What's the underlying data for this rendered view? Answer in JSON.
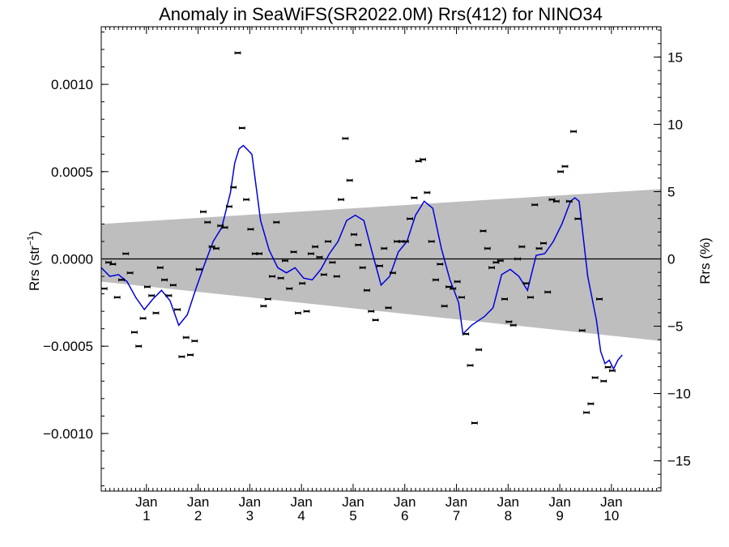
{
  "chart_data": {
    "type": "scatter",
    "title": "Anomaly in SeaWiFS(SR2022.0M) Rrs(412) for NINO34",
    "ylabel_left": {
      "base": "Rrs (str",
      "sup": "−1",
      "close": ")"
    },
    "ylabel_right": "Rrs (%)",
    "x_unit": "months since start",
    "xlim": [
      0,
      130
    ],
    "ylim_left": [
      -0.00133,
      0.00133
    ],
    "ylim_right": [
      -17.25,
      17.25
    ],
    "y_ticks_left": [
      {
        "v": 0.001,
        "label": "0.0010"
      },
      {
        "v": 0.0005,
        "label": "0.0005"
      },
      {
        "v": 0.0,
        "label": "0.0000"
      },
      {
        "v": -0.0005,
        "label": "−0.0005"
      },
      {
        "v": -0.001,
        "label": "−0.0010"
      }
    ],
    "y_ticks_right": [
      {
        "v": 15,
        "label": "15"
      },
      {
        "v": 10,
        "label": "10"
      },
      {
        "v": 5,
        "label": "5"
      },
      {
        "v": 0,
        "label": "0"
      },
      {
        "v": -5,
        "label": "−5"
      },
      {
        "v": -10,
        "label": "−10"
      },
      {
        "v": -15,
        "label": "−15"
      }
    ],
    "x_ticks": [
      {
        "x": 10.5,
        "month": "Jan",
        "year": "1"
      },
      {
        "x": 22.5,
        "month": "Jan",
        "year": "2"
      },
      {
        "x": 34.5,
        "month": "Jan",
        "year": "3"
      },
      {
        "x": 46.5,
        "month": "Jan",
        "year": "4"
      },
      {
        "x": 58.5,
        "month": "Jan",
        "year": "5"
      },
      {
        "x": 70.5,
        "month": "Jan",
        "year": "6"
      },
      {
        "x": 82.5,
        "month": "Jan",
        "year": "7"
      },
      {
        "x": 94.5,
        "month": "Jan",
        "year": "8"
      },
      {
        "x": 106.5,
        "month": "Jan",
        "year": "9"
      },
      {
        "x": 118.5,
        "month": "Jan",
        "year": "10"
      }
    ],
    "band": {
      "upper": [
        [
          0,
          0.0002
        ],
        [
          130,
          0.0004
        ]
      ],
      "lower": [
        [
          0,
          -0.00013
        ],
        [
          130,
          -0.00047
        ]
      ],
      "color": "#bebebe"
    },
    "zero_line": true,
    "colors": {
      "points": "#000000",
      "smooth": "#0000dd",
      "band": "#bebebe"
    },
    "points": [
      [
        0.7,
        -0.00017
      ],
      [
        1.7,
        -2e-05
      ],
      [
        2.7,
        -3e-05
      ],
      [
        3.7,
        -0.00022
      ],
      [
        4.7,
        -0.00012
      ],
      [
        5.7,
        3e-05
      ],
      [
        6.7,
        -8e-05
      ],
      [
        7.7,
        -0.00042
      ],
      [
        8.7,
        -0.0005
      ],
      [
        9.7,
        -0.00034
      ],
      [
        10.7,
        -0.00016
      ],
      [
        11.7,
        -0.00021
      ],
      [
        12.7,
        -0.00031
      ],
      [
        13.7,
        -5e-05
      ],
      [
        14.7,
        -0.00012
      ],
      [
        15.7,
        -0.00021
      ],
      [
        16.7,
        -0.00015
      ],
      [
        17.7,
        -0.00029
      ],
      [
        18.7,
        -0.00056
      ],
      [
        19.7,
        -0.00045
      ],
      [
        20.7,
        -0.00055
      ],
      [
        21.7,
        -0.00047
      ],
      [
        22.7,
        -6e-05
      ],
      [
        23.7,
        0.00027
      ],
      [
        24.7,
        0.00021
      ],
      [
        25.7,
        7e-05
      ],
      [
        26.7,
        6e-05
      ],
      [
        27.7,
        0.00019
      ],
      [
        28.7,
        0.00018
      ],
      [
        29.7,
        0.0003
      ],
      [
        30.7,
        0.00041
      ],
      [
        31.7,
        0.00118
      ],
      [
        32.7,
        0.00075
      ],
      [
        33.7,
        0.00034
      ],
      [
        34.7,
        0.00017
      ],
      [
        35.7,
        3e-05
      ],
      [
        36.7,
        3e-05
      ],
      [
        37.7,
        -0.00027
      ],
      [
        38.7,
        -0.00023
      ],
      [
        39.7,
        -0.0001
      ],
      [
        40.7,
        0.00021
      ],
      [
        41.7,
        -0.00011
      ],
      [
        42.7,
        -1e-05
      ],
      [
        43.7,
        -0.00017
      ],
      [
        44.7,
        4e-05
      ],
      [
        45.7,
        -0.00031
      ],
      [
        46.7,
        -0.00014
      ],
      [
        47.7,
        -0.0003
      ],
      [
        48.7,
        3e-05
      ],
      [
        49.7,
        7e-05
      ],
      [
        50.7,
        1e-05
      ],
      [
        51.7,
        -9e-05
      ],
      [
        52.7,
        0.0001
      ],
      [
        53.7,
        -2e-05
      ],
      [
        54.7,
        -0.0001
      ],
      [
        55.7,
        0.00034
      ],
      [
        56.7,
        0.00069
      ],
      [
        57.7,
        0.00045
      ],
      [
        58.7,
        0.00014
      ],
      [
        59.7,
        8e-05
      ],
      [
        60.7,
        -5e-05
      ],
      [
        61.7,
        -0.00018
      ],
      [
        62.7,
        -0.0003
      ],
      [
        63.7,
        -0.00035
      ],
      [
        64.7,
        -4e-05
      ],
      [
        65.7,
        6e-05
      ],
      [
        66.7,
        -0.00028
      ],
      [
        67.7,
        -8e-05
      ],
      [
        68.7,
        0.0001
      ],
      [
        69.7,
        0.0001
      ],
      [
        70.7,
        0.0001
      ],
      [
        71.7,
        0.00023
      ],
      [
        72.7,
        0.00035
      ],
      [
        73.7,
        0.00056
      ],
      [
        74.7,
        0.00057
      ],
      [
        75.7,
        0.00038
      ],
      [
        76.7,
        0.0001
      ],
      [
        77.7,
        -0.00012
      ],
      [
        78.7,
        -3e-05
      ],
      [
        79.7,
        -0.00027
      ],
      [
        80.7,
        -0.00016
      ],
      [
        81.7,
        -0.00017
      ],
      [
        82.7,
        -0.00013
      ],
      [
        83.7,
        -0.00022
      ],
      [
        84.7,
        -0.00043
      ],
      [
        85.7,
        -0.00061
      ],
      [
        86.7,
        -0.00094
      ],
      [
        87.7,
        -0.00052
      ],
      [
        88.7,
        0.00016
      ],
      [
        89.7,
        6e-05
      ],
      [
        90.7,
        -5e-05
      ],
      [
        91.7,
        -2e-05
      ],
      [
        92.7,
        -1e-05
      ],
      [
        93.7,
        -0.00023
      ],
      [
        94.7,
        -0.00036
      ],
      [
        95.7,
        -0.00038
      ],
      [
        96.7,
        0.0
      ],
      [
        97.7,
        7e-05
      ],
      [
        98.7,
        -0.00014
      ],
      [
        99.7,
        -0.00022
      ],
      [
        100.7,
        0.00031
      ],
      [
        101.7,
        6e-05
      ],
      [
        102.7,
        9e-05
      ],
      [
        103.7,
        -0.00019
      ],
      [
        104.7,
        0.00034
      ],
      [
        105.7,
        0.00033
      ],
      [
        106.7,
        0.0005
      ],
      [
        107.7,
        0.00053
      ],
      [
        108.7,
        0.00033
      ],
      [
        109.7,
        0.00073
      ],
      [
        110.7,
        0.00023
      ],
      [
        111.7,
        -0.00041
      ],
      [
        112.7,
        -0.00088
      ],
      [
        113.7,
        -0.00083
      ],
      [
        114.7,
        -0.00068
      ],
      [
        115.7,
        -0.00023
      ],
      [
        116.7,
        -0.0007
      ],
      [
        117.7,
        -0.00062
      ],
      [
        118.7,
        -0.00064
      ]
    ],
    "smooth": [
      [
        0,
        -5e-05
      ],
      [
        2,
        -0.0001
      ],
      [
        4,
        -9e-05
      ],
      [
        6,
        -0.00013
      ],
      [
        8,
        -0.00022
      ],
      [
        10,
        -0.00029
      ],
      [
        12,
        -0.00023
      ],
      [
        14,
        -0.00018
      ],
      [
        16,
        -0.00024
      ],
      [
        18,
        -0.00038
      ],
      [
        20,
        -0.00032
      ],
      [
        22,
        -0.00017
      ],
      [
        24,
        -3e-05
      ],
      [
        26,
        0.0001
      ],
      [
        28,
        0.00018
      ],
      [
        30,
        0.00038
      ],
      [
        31,
        0.00055
      ],
      [
        32,
        0.00063
      ],
      [
        33,
        0.00065
      ],
      [
        35,
        0.0006
      ],
      [
        37,
        0.00022
      ],
      [
        39,
        5e-05
      ],
      [
        41,
        -5e-05
      ],
      [
        43,
        -8e-05
      ],
      [
        45,
        -5e-05
      ],
      [
        47,
        -0.00011
      ],
      [
        49,
        -0.00012
      ],
      [
        51,
        -6e-05
      ],
      [
        53,
        3e-05
      ],
      [
        55,
        0.0001
      ],
      [
        57,
        0.00022
      ],
      [
        59,
        0.00025
      ],
      [
        61,
        0.00022
      ],
      [
        63,
        3e-05
      ],
      [
        65,
        -0.00015
      ],
      [
        67,
        -0.0001
      ],
      [
        69,
        4e-05
      ],
      [
        71,
        0.0001
      ],
      [
        73,
        0.00025
      ],
      [
        75,
        0.00033
      ],
      [
        77,
        0.00029
      ],
      [
        79,
        6e-05
      ],
      [
        81,
        -0.00012
      ],
      [
        83,
        -0.00025
      ],
      [
        84,
        -0.00043
      ],
      [
        86,
        -0.00038
      ],
      [
        89,
        -0.00033
      ],
      [
        91,
        -0.00028
      ],
      [
        93,
        -9e-05
      ],
      [
        95,
        -6e-05
      ],
      [
        97,
        -0.0001
      ],
      [
        99,
        -0.00018
      ],
      [
        101,
        2e-05
      ],
      [
        103,
        3e-05
      ],
      [
        105,
        0.0001
      ],
      [
        107,
        0.0002
      ],
      [
        109,
        0.00033
      ],
      [
        110,
        0.00035
      ],
      [
        111,
        0.00033
      ],
      [
        113,
        -0.0001
      ],
      [
        115,
        -0.00035
      ],
      [
        116,
        -0.00053
      ],
      [
        117,
        -0.0006
      ],
      [
        118,
        -0.00058
      ],
      [
        119,
        -0.00063
      ],
      [
        120,
        -0.00058
      ],
      [
        121,
        -0.00055
      ]
    ]
  }
}
